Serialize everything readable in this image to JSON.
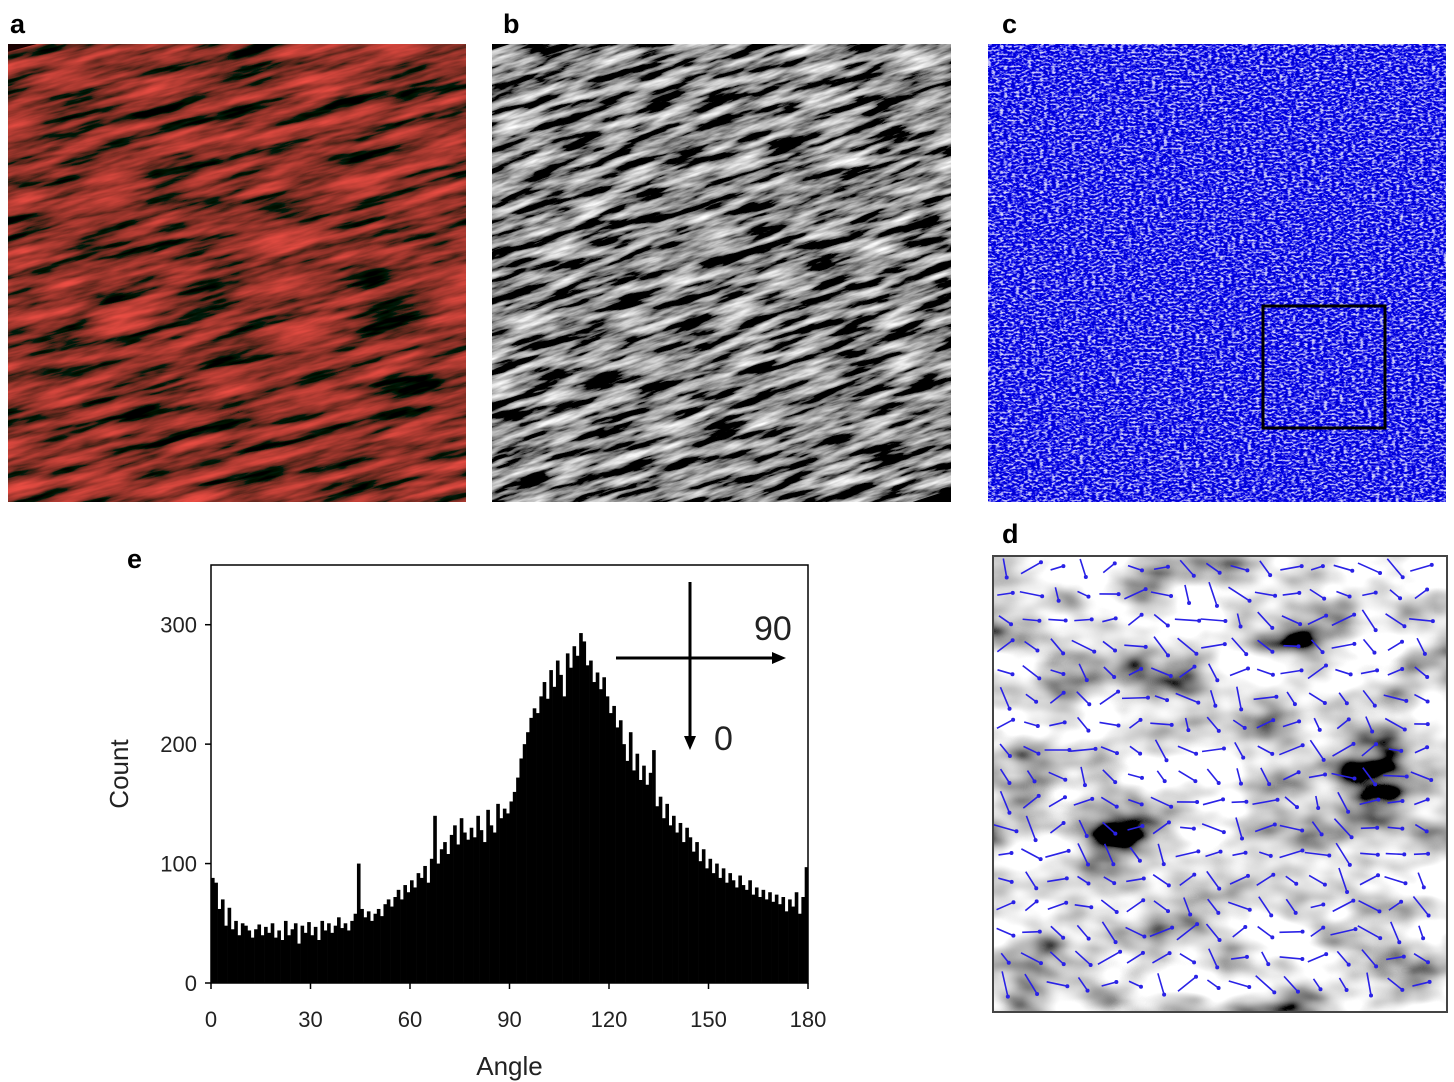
{
  "panels": {
    "a": "a",
    "b": "b",
    "c": "c",
    "d": "d",
    "e": "e"
  },
  "chart_data": {
    "type": "histogram",
    "xlabel": "Angle",
    "ylabel": "Count",
    "color": "#000000",
    "xlim": [
      0,
      180
    ],
    "ylim": [
      0,
      350
    ],
    "xticks": [
      0,
      30,
      60,
      90,
      120,
      150,
      180
    ],
    "yticks": [
      0,
      100,
      200,
      300
    ],
    "axis_key": {
      "horizontal": "90",
      "vertical": "0"
    },
    "bins": [
      0,
      1,
      2,
      3,
      4,
      5,
      6,
      7,
      8,
      9,
      10,
      11,
      12,
      13,
      14,
      15,
      16,
      17,
      18,
      19,
      20,
      21,
      22,
      23,
      24,
      25,
      26,
      27,
      28,
      29,
      30,
      31,
      32,
      33,
      34,
      35,
      36,
      37,
      38,
      39,
      40,
      41,
      42,
      43,
      44,
      45,
      46,
      47,
      48,
      49,
      50,
      51,
      52,
      53,
      54,
      55,
      56,
      57,
      58,
      59,
      60,
      61,
      62,
      63,
      64,
      65,
      66,
      67,
      68,
      69,
      70,
      71,
      72,
      73,
      74,
      75,
      76,
      77,
      78,
      79,
      80,
      81,
      82,
      83,
      84,
      85,
      86,
      87,
      88,
      89,
      90,
      91,
      92,
      93,
      94,
      95,
      96,
      97,
      98,
      99,
      100,
      101,
      102,
      103,
      104,
      105,
      106,
      107,
      108,
      109,
      110,
      111,
      112,
      113,
      114,
      115,
      116,
      117,
      118,
      119,
      120,
      121,
      122,
      123,
      124,
      125,
      126,
      127,
      128,
      129,
      130,
      131,
      132,
      133,
      134,
      135,
      136,
      137,
      138,
      139,
      140,
      141,
      142,
      143,
      144,
      145,
      146,
      147,
      148,
      149,
      150,
      151,
      152,
      153,
      154,
      155,
      156,
      157,
      158,
      159,
      160,
      161,
      162,
      163,
      164,
      165,
      166,
      167,
      168,
      169,
      170,
      171,
      172,
      173,
      174,
      175,
      176,
      177,
      178,
      179,
      180
    ],
    "values": [
      88,
      84,
      62,
      70,
      48,
      63,
      45,
      52,
      40,
      50,
      48,
      44,
      38,
      45,
      49,
      40,
      47,
      42,
      50,
      38,
      44,
      36,
      52,
      40,
      45,
      50,
      33,
      48,
      42,
      51,
      40,
      47,
      36,
      52,
      44,
      50,
      42,
      48,
      55,
      46,
      50,
      44,
      52,
      58,
      100,
      62,
      55,
      60,
      52,
      58,
      62,
      56,
      66,
      70,
      64,
      72,
      78,
      70,
      82,
      76,
      86,
      80,
      92,
      88,
      98,
      84,
      104,
      140,
      100,
      112,
      118,
      108,
      124,
      132,
      116,
      138,
      126,
      120,
      130,
      122,
      140,
      128,
      118,
      145,
      132,
      126,
      150,
      138,
      146,
      142,
      152,
      160,
      172,
      188,
      200,
      210,
      222,
      230,
      226,
      240,
      252,
      238,
      262,
      248,
      270,
      258,
      240,
      276,
      264,
      282,
      274,
      293,
      286,
      266,
      270,
      252,
      260,
      246,
      256,
      240,
      226,
      232,
      214,
      220,
      200,
      186,
      210,
      178,
      192,
      170,
      182,
      166,
      176,
      195,
      148,
      156,
      138,
      150,
      132,
      140,
      126,
      134,
      118,
      130,
      122,
      110,
      118,
      102,
      112,
      96,
      104,
      92,
      100,
      88,
      96,
      84,
      92,
      86,
      80,
      90,
      82,
      78,
      86,
      74,
      80,
      72,
      78,
      70,
      76,
      68,
      74,
      66,
      72,
      60,
      70,
      64,
      76,
      58,
      72,
      97
    ]
  }
}
